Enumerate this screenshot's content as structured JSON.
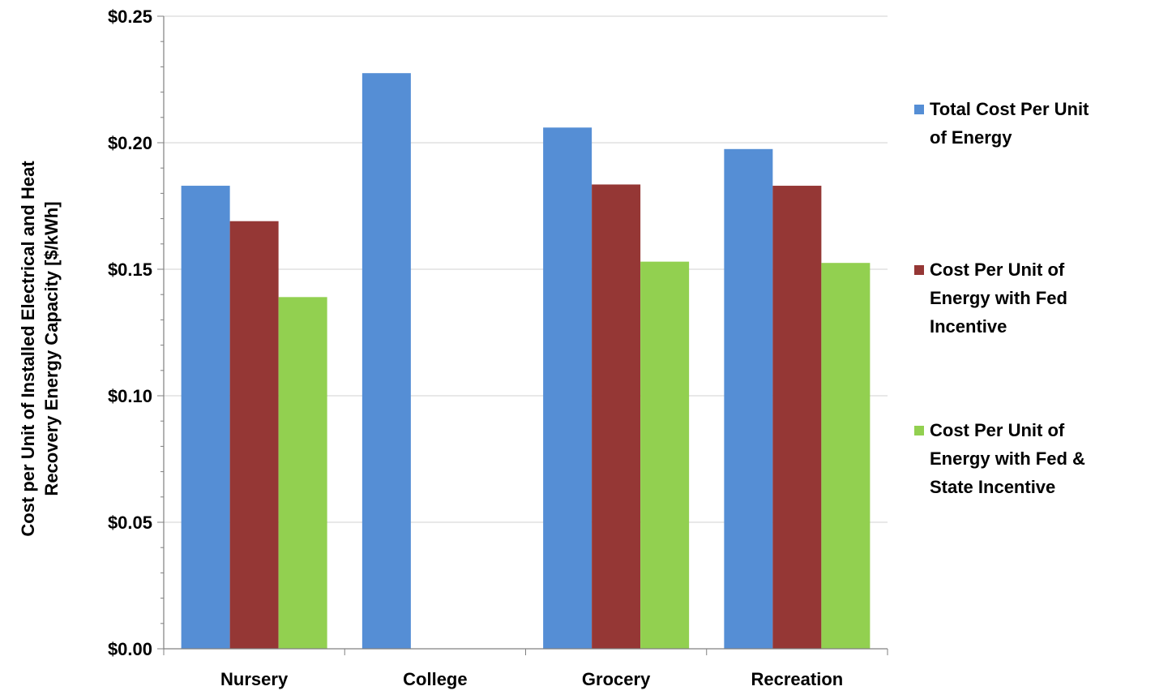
{
  "colors": {
    "background": "#ffffff",
    "axis": "#808080",
    "gridline": "#d0d0d0",
    "series": [
      "#558ed5",
      "#953735",
      "#92d050"
    ]
  },
  "chart_data": {
    "type": "bar",
    "title": "",
    "xlabel": "",
    "ylabel": "Cost per Unit of Installed Electrical and Heat Recovery Energy Capacity [$/kWh]",
    "ylabel_lines": [
      "Cost per Unit of Installed Electrical and Heat",
      "Recovery Energy Capacity [$/kWh]"
    ],
    "categories": [
      "Nursery",
      "College",
      "Grocery",
      "Recreation"
    ],
    "ylim": [
      0,
      0.25
    ],
    "yticks": [
      0,
      0.05,
      0.1,
      0.15,
      0.2,
      0.25
    ],
    "ytick_labels": [
      "$0.00",
      "$0.05",
      "$0.10",
      "$0.15",
      "$0.20",
      "$0.25"
    ],
    "grid": true,
    "legend_position": "right",
    "series": [
      {
        "name": "Total Cost Per Unit of Energy",
        "name_lines": [
          "Total Cost Per Unit",
          "of Energy"
        ],
        "color": "#558ed5",
        "values": [
          0.183,
          0.2275,
          0.206,
          0.1975
        ]
      },
      {
        "name": "Cost Per Unit of Energy with Fed Incentive",
        "name_lines": [
          "Cost Per Unit of",
          "Energy with Fed",
          "Incentive"
        ],
        "color": "#953735",
        "values": [
          0.169,
          null,
          0.1835,
          0.183
        ]
      },
      {
        "name": "Cost Per Unit of Energy with Fed & State Incentive",
        "name_lines": [
          "Cost Per Unit of",
          "Energy with Fed &",
          "State Incentive"
        ],
        "color": "#92d050",
        "values": [
          0.139,
          null,
          0.153,
          0.1525
        ]
      }
    ]
  }
}
